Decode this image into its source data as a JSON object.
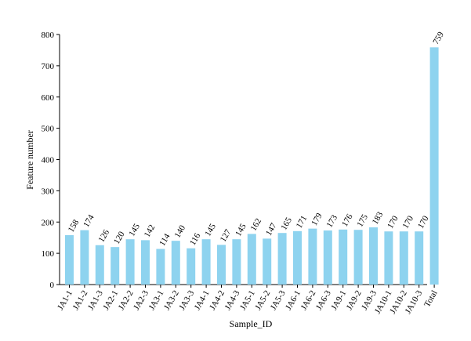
{
  "chart_data": {
    "type": "bar",
    "title": "",
    "xlabel": "Sample_ID",
    "ylabel": "Feature number",
    "ylim": [
      0,
      800
    ],
    "yticks": [
      0,
      100,
      200,
      300,
      400,
      500,
      600,
      700,
      800
    ],
    "grid": false,
    "legend": "none",
    "bar_color": "#8ED3EF",
    "categories": [
      "JA1-1",
      "JA1-2",
      "JA1-3",
      "JA2-1",
      "JA2-2",
      "JA2-3",
      "JA3-1",
      "JA3-2",
      "JA3-3",
      "JA4-1",
      "JA4-2",
      "JA4-3",
      "JA5-1",
      "JA5-2",
      "JA5-3",
      "JA6-1",
      "JA6-2",
      "JA6-3",
      "JA9-1",
      "JA9-2",
      "JA9-3",
      "JA10-1",
      "JA10-2",
      "JA10-3",
      "Total"
    ],
    "values": [
      158,
      174,
      126,
      120,
      145,
      142,
      114,
      140,
      116,
      145,
      127,
      145,
      162,
      147,
      165,
      171,
      179,
      173,
      176,
      175,
      183,
      170,
      170,
      170,
      759
    ]
  }
}
